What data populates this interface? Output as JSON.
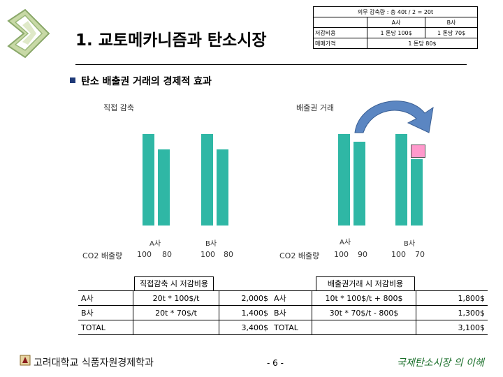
{
  "header": {
    "title": "1. 교토메카니즘과 탄소시장"
  },
  "info_table": {
    "caption": "의무 감축량 : 총  40t / 2 = 20t",
    "col_a": "A사",
    "col_b": "B사",
    "row1_label": "저감비용",
    "row1_a": "1 톤당 100$",
    "row1_b": "1 톤당 70$",
    "row2_label": "매매가격",
    "row2_value": "1 톤당 80$"
  },
  "section": {
    "title": "탄소 배출권 거래의 경제적 효과"
  },
  "left_chart": {
    "title": "직접 감축",
    "company_a": "A사",
    "company_b": "B사",
    "row_label": "CO2 배출량",
    "a_before": "100",
    "a_after": "80",
    "b_before": "100",
    "b_after": "80"
  },
  "right_chart": {
    "title": "배출권 거래",
    "company_a": "A사",
    "company_b": "B사",
    "row_label": "CO2 배출량",
    "a_before": "100",
    "a_after": "90",
    "b_before": "100",
    "b_after": "70"
  },
  "cost_table": {
    "left_header": "직접감축 시 저감비용",
    "right_header": "배출권거래 시 저감비용",
    "rows": [
      {
        "label": "A사",
        "formula": "20t * 100$/t",
        "value": "2,000$",
        "r_label": "A사",
        "r_formula": "10t * 100$/t + 800$",
        "r_value": "1,800$"
      },
      {
        "label": "B사",
        "formula": "20t * 70$/t",
        "value": "1,400$",
        "r_label": "B사",
        "r_formula": "30t * 70$/t - 800$",
        "r_value": "1,300$"
      },
      {
        "label": "TOTAL",
        "formula": "",
        "value": "3,400$",
        "r_label": "TOTAL",
        "r_formula": "",
        "r_value": "3,100$"
      }
    ]
  },
  "footer": {
    "left": "고려대학교 식품자원경제학과",
    "center": "- 6 -",
    "right": "국제탄소시장 의 이해"
  },
  "colors": {
    "bar": "#2fb7a5",
    "transfer": "#ff99cc",
    "arrow": "#5b86c2",
    "section_bullet": "#1f3a78"
  }
}
